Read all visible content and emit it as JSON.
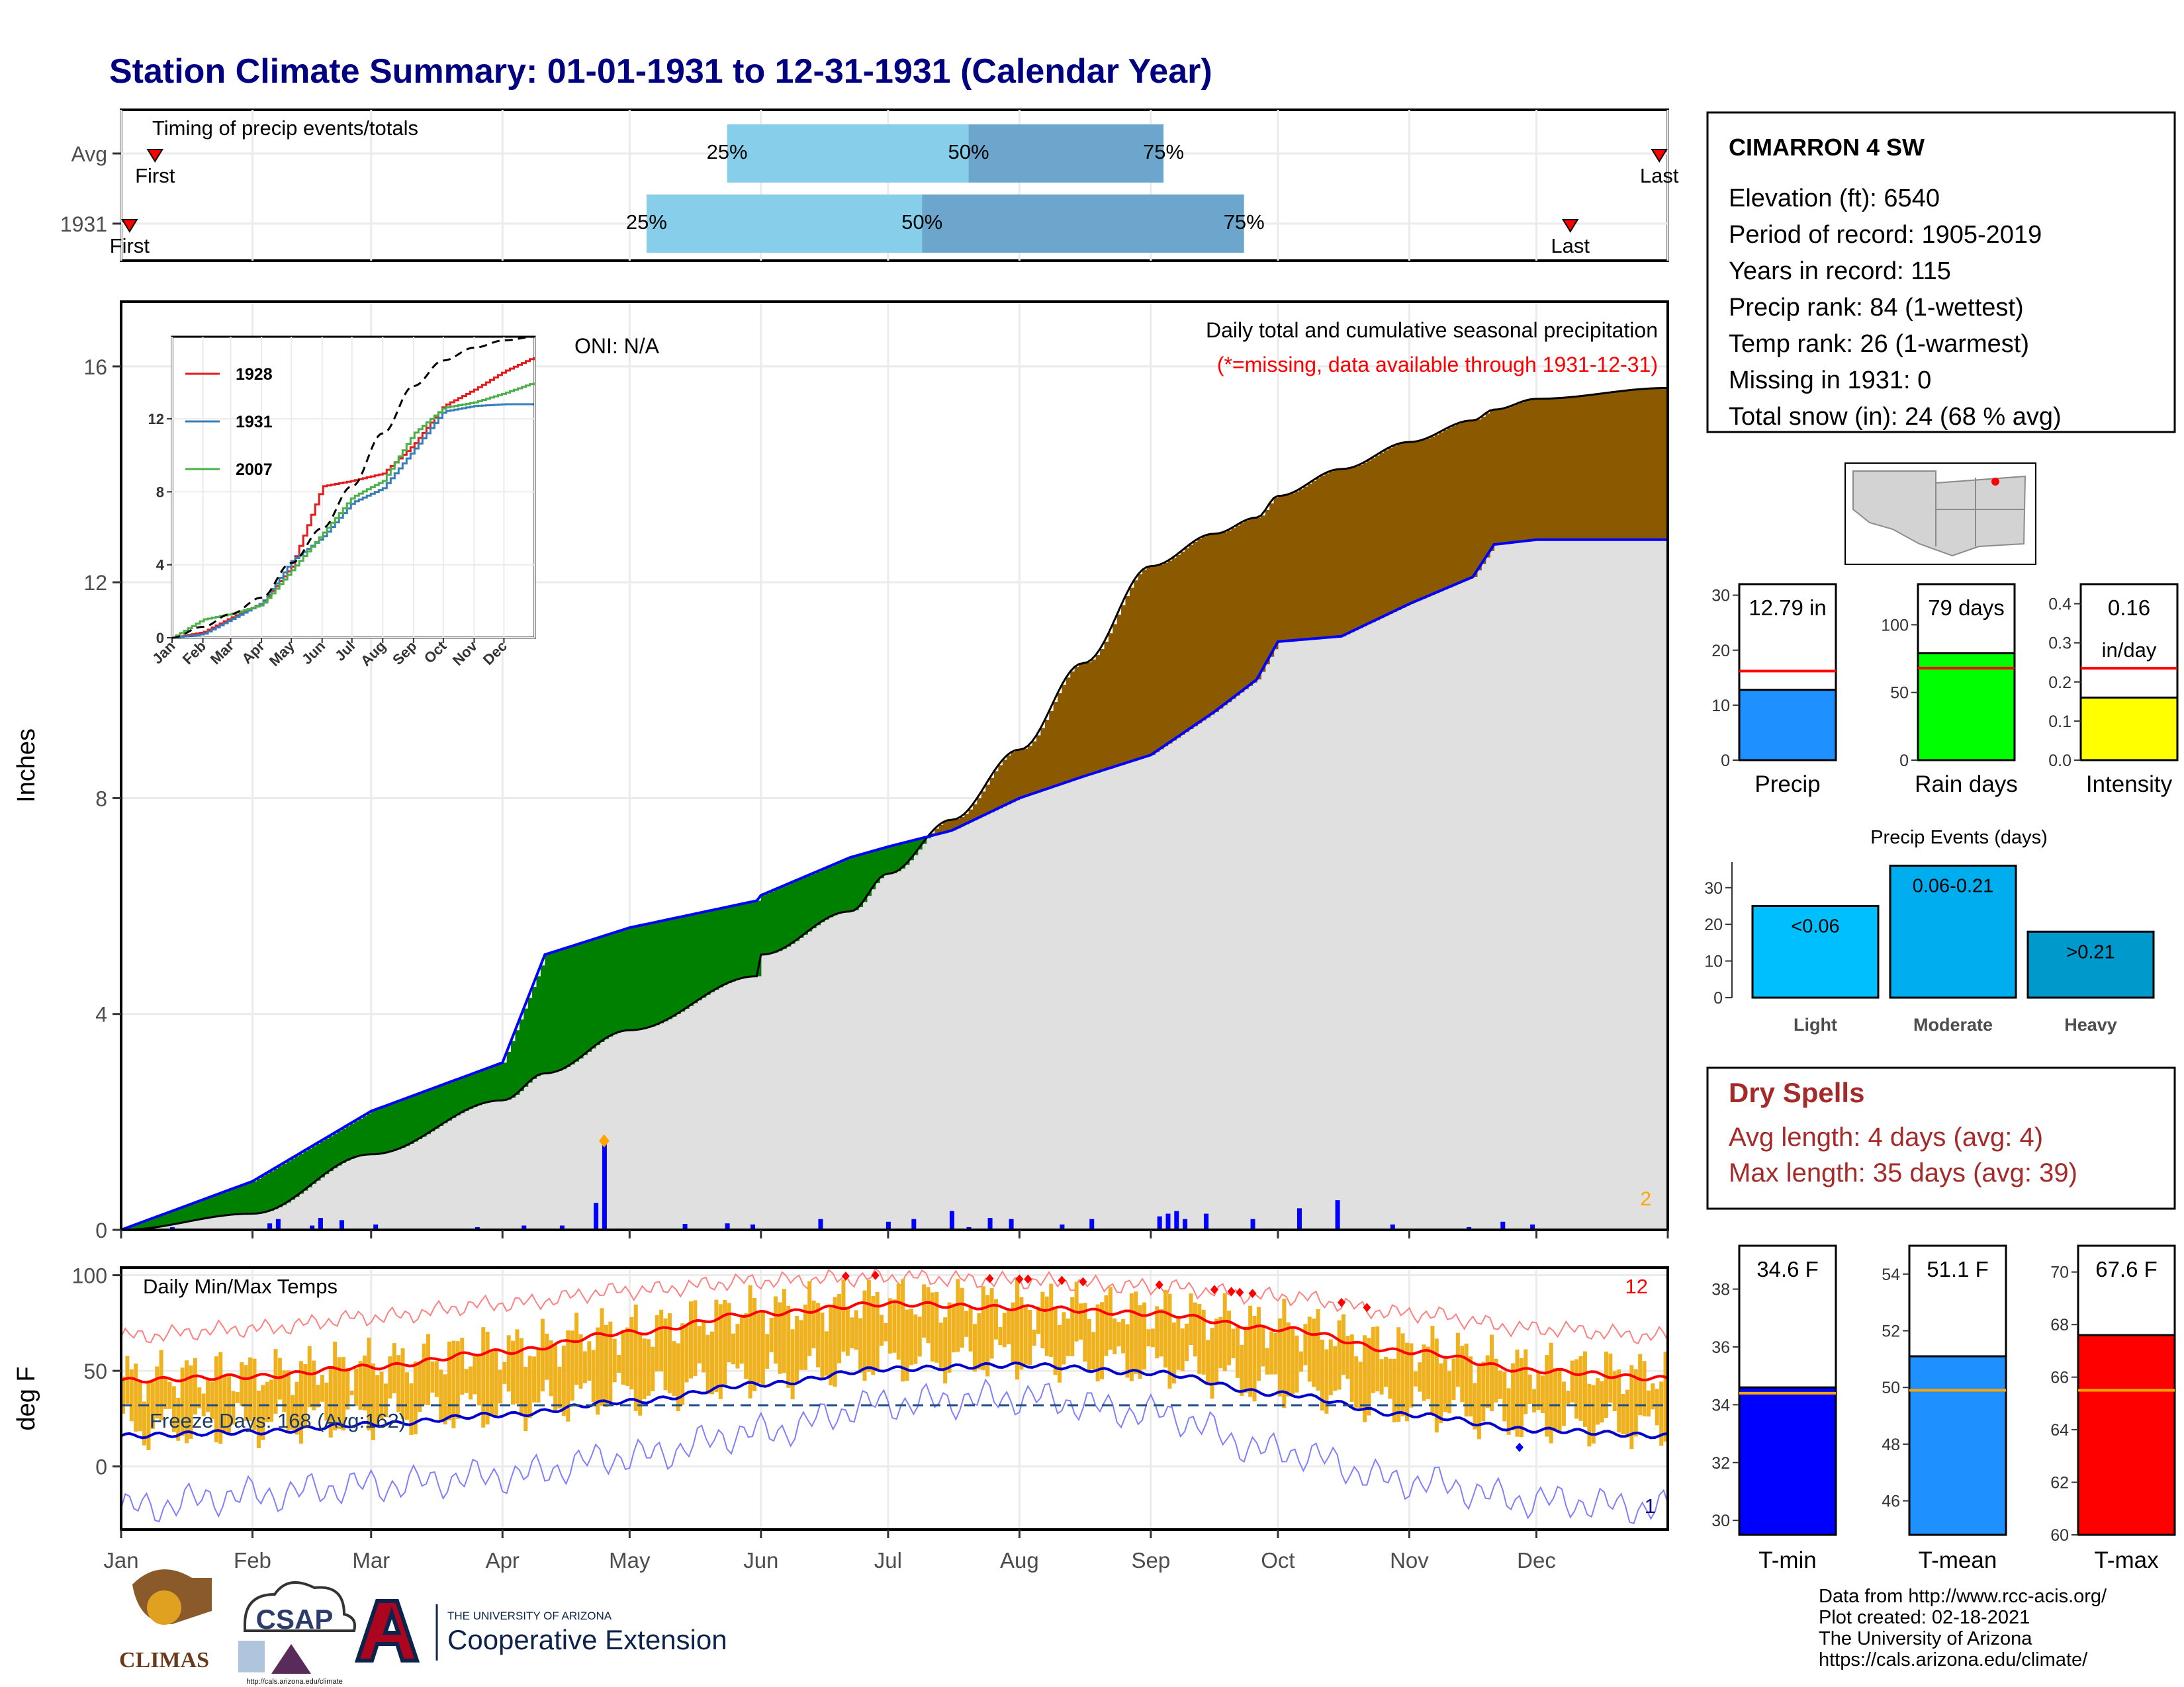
{
  "title": "Station Climate Summary: 01-01-1931 to 12-31-1931 (Calendar Year)",
  "colors": {
    "title": "#000080",
    "above_normal": "#008000",
    "below_normal": "#8B5A00",
    "normal_fill": "#E0E0E0",
    "precip_line": "#0000FF",
    "temp_bar": "#EFB21E",
    "avg_max": "#FF0000",
    "avg_min": "#0000CC",
    "missing": "#FF0000",
    "timing_light": "#87CEEB",
    "timing_dark": "#6CA6CD"
  },
  "month_labels": [
    "Jan",
    "Feb",
    "Mar",
    "Apr",
    "May",
    "Jun",
    "Jul",
    "Aug",
    "Sep",
    "Oct",
    "Nov",
    "Dec"
  ],
  "timing": {
    "title": "Timing of precip events/totals",
    "rows": [
      {
        "label": "Avg",
        "first_label": "First",
        "last_label": "Last",
        "first_day": 8,
        "last_day": 363,
        "p25": 143,
        "p50": 200,
        "p75": 246,
        "q25_label": "25%",
        "q50_label": "50%",
        "q75_label": "75%"
      },
      {
        "label": "1931",
        "first_label": "First",
        "last_label": "Last",
        "first_day": 2,
        "last_day": 342,
        "p25": 124,
        "p50": 189,
        "p75": 265,
        "q25_label": "25%",
        "q50_label": "50%",
        "q75_label": "75%"
      }
    ]
  },
  "precip": {
    "ylabel": "Inches",
    "oni": "ONI: N/A",
    "title": "Daily total and cumulative seasonal precipitation",
    "missing_note": "(*=missing, data available through 1931-12-31)",
    "corner_count": "2",
    "yticks": [
      0,
      4,
      8,
      12,
      16
    ],
    "ylim": [
      0,
      17.2
    ]
  },
  "inset": {
    "yticks": [
      0,
      4,
      8,
      12
    ],
    "ylim": [
      0,
      16.5
    ],
    "legend": [
      {
        "name": "1928",
        "color": "#E41A1C"
      },
      {
        "name": "1931",
        "color": "#377EB8"
      },
      {
        "name": "2007",
        "color": "#4DAF4A"
      }
    ]
  },
  "temps": {
    "label": "Daily Min/Max Temps",
    "ylabel": "deg F",
    "freeze_label": "Freeze Days: 168 (Avg:162)",
    "freeze_value": 32,
    "count_hot": "12",
    "count_cold": "1",
    "yticks": [
      0,
      50,
      100
    ],
    "ylim": [
      -33,
      104
    ]
  },
  "station": {
    "name": "CIMARRON 4 SW",
    "lines": [
      "Elevation (ft): 6540",
      "Period of record: 1905-2019",
      "Years in record: 115",
      "Precip rank: 84 (1-wettest)",
      "Temp rank: 26 (1-warmest)",
      "Missing in 1931: 0",
      "Total snow (in): 24 (68 % avg)"
    ]
  },
  "mini_bars": [
    {
      "label": "Precip",
      "value": 12.79,
      "value_label": "12.79 in",
      "avg": 16.2,
      "max": 32,
      "ticks": [
        0,
        10,
        20,
        30
      ],
      "color": "#1E90FF"
    },
    {
      "label": "Rain days",
      "value": 79,
      "value_label": "79 days",
      "avg": 68,
      "max": 130,
      "ticks": [
        0,
        50,
        100
      ],
      "color": "#00FF00"
    },
    {
      "label": "Intensity",
      "value": 0.16,
      "value_label": "0.16",
      "value_label2": "in/day",
      "avg": 0.235,
      "max": 0.45,
      "ticks": [
        0.0,
        0.1,
        0.2,
        0.3,
        0.4
      ],
      "color": "#FFFF00"
    }
  ],
  "events": {
    "title": "Precip Events (days)",
    "ticks": [
      0,
      10,
      20,
      30
    ],
    "max": 37,
    "bars": [
      {
        "cat": "Light",
        "label": "<0.06",
        "value": 25,
        "color": "#00BFFF"
      },
      {
        "cat": "Moderate",
        "label": "0.06-0.21",
        "value": 36,
        "color": "#00AEEF"
      },
      {
        "cat": "Heavy",
        "label": ">0.21",
        "value": 18,
        "color": "#0099CC"
      }
    ]
  },
  "dry_spells": {
    "title": "Dry Spells",
    "avg": "Avg length: 4 days (avg: 4)",
    "max": "Max length: 35 days (avg: 39)"
  },
  "temp_bars": [
    {
      "label": "T-min",
      "value": 34.6,
      "value_label": "34.6 F",
      "avg": 34.4,
      "min": 29.5,
      "max": 39.5,
      "ticks": [
        30,
        32,
        34,
        36,
        38
      ],
      "color": "#0000FF"
    },
    {
      "label": "T-mean",
      "value": 51.1,
      "value_label": "51.1 F",
      "avg": 49.9,
      "min": 44.8,
      "max": 55.0,
      "ticks": [
        46,
        48,
        50,
        52,
        54
      ],
      "color": "#1E90FF"
    },
    {
      "label": "T-max",
      "value": 67.6,
      "value_label": "67.6 F",
      "avg": 65.5,
      "min": 60,
      "max": 71,
      "ticks": [
        60,
        62,
        64,
        66,
        68,
        70
      ],
      "color": "#FF0000"
    }
  ],
  "footer": {
    "lines": [
      "Data from http://www.rcc-acis.org/",
      "Plot created: 02-18-2021",
      "The University of Arizona",
      "https://cals.arizona.edu/climate/"
    ],
    "climas": "CLIMAS",
    "csap": "CSAP",
    "csap_url": "http://cals.arizona.edu/climate",
    "ua_line1": "THE UNIVERSITY OF ARIZONA",
    "ua_line2": "Cooperative Extension"
  },
  "chart_data": [
    {
      "type": "area",
      "name_note": "cumulative precipitation (inches) by day of year",
      "x": [
        0,
        31,
        59,
        90,
        100,
        120,
        150,
        151,
        172,
        181,
        196,
        212,
        227,
        243,
        258,
        268,
        273,
        288,
        304,
        319,
        324,
        334,
        365
      ],
      "series": [
        {
          "name": "1931",
          "values": [
            0,
            0.9,
            2.2,
            3.1,
            5.1,
            5.6,
            6.1,
            6.2,
            6.9,
            7.1,
            7.4,
            8.0,
            8.4,
            8.8,
            9.6,
            10.2,
            10.9,
            11.0,
            11.6,
            12.1,
            12.7,
            12.79,
            12.79
          ]
        },
        {
          "name": "",
          "values": [
            0,
            0.3,
            1.4,
            2.4,
            2.9,
            3.7,
            4.7,
            5.1,
            5.9,
            6.6,
            7.6,
            8.9,
            10.5,
            12.3,
            12.9,
            13.2,
            13.6,
            14.1,
            14.6,
            15.0,
            15.2,
            15.4,
            15.6
          ]
        }
      ],
      "xlabel": "",
      "ylabel": "Inches",
      "ylim": [
        0,
        17.2
      ]
    },
    {
      "type": "bar",
      "name_note": "largest daily precipitation totals (inches) by day of year",
      "x": [
        12,
        35,
        37,
        45,
        47,
        52,
        60,
        84,
        95,
        104,
        112,
        114,
        133,
        143,
        149,
        165,
        181,
        187,
        196,
        200,
        205,
        210,
        222,
        229,
        245,
        247,
        249,
        251,
        256,
        267,
        278,
        287,
        300,
        318,
        326,
        333
      ],
      "values": [
        0.05,
        0.12,
        0.2,
        0.08,
        0.22,
        0.18,
        0.1,
        0.05,
        0.08,
        0.08,
        0.5,
        1.6,
        0.11,
        0.12,
        0.1,
        0.2,
        0.15,
        0.2,
        0.35,
        0.05,
        0.22,
        0.2,
        0.1,
        0.2,
        0.25,
        0.3,
        0.35,
        0.2,
        0.3,
        0.2,
        0.4,
        0.55,
        0.1,
        0.05,
        0.15,
        0.1
      ]
    },
    {
      "type": "line",
      "name_note": "inset cumulative precipitation of comparison years (inches)",
      "x": [
        0,
        31,
        59,
        90,
        120,
        151,
        181,
        212,
        243,
        273,
        304,
        334,
        365
      ],
      "series": [
        {
          "name": "1928",
          "values": [
            0,
            0.3,
            1.1,
            1.9,
            3.9,
            8.3,
            8.6,
            9.0,
            10.6,
            12.7,
            13.6,
            14.6,
            15.4
          ]
        },
        {
          "name": "1931",
          "values": [
            0,
            0.2,
            1.0,
            1.9,
            4.2,
            5.5,
            7.4,
            8.2,
            10.3,
            12.4,
            12.7,
            12.8,
            12.8
          ]
        },
        {
          "name": "2007",
          "values": [
            0,
            1.0,
            1.3,
            1.8,
            3.7,
            5.7,
            7.7,
            8.6,
            11.2,
            12.6,
            12.9,
            13.4,
            14.0
          ]
        },
        {
          "name": "",
          "values": [
            0,
            0.6,
            1.3,
            2.2,
            4.1,
            6.0,
            8.3,
            11.2,
            13.8,
            15.2,
            15.9,
            16.3,
            16.5
          ]
        }
      ],
      "ylim": [
        0,
        16.5
      ]
    },
    {
      "type": "line",
      "name_note": "daily temperatures (deg F) by day of year",
      "x": [
        0,
        31,
        59,
        90,
        120,
        151,
        181,
        212,
        243,
        273,
        304,
        334,
        365
      ],
      "series": [
        {
          "name": "",
          "values": [
            45,
            47,
            52,
            60,
            70,
            80,
            85,
            83,
            80,
            72,
            60,
            50,
            46
          ]
        },
        {
          "name": "",
          "values": [
            16,
            18,
            22,
            27,
            34,
            43,
            51,
            53,
            49,
            38,
            27,
            19,
            16
          ]
        },
        {
          "name": "",
          "values": [
            68,
            72,
            78,
            85,
            92,
            97,
            99,
            97,
            94,
            89,
            80,
            72,
            68
          ]
        },
        {
          "name": "",
          "values": [
            -22,
            -15,
            -10,
            -5,
            5,
            18,
            33,
            36,
            28,
            8,
            -8,
            -18,
            -22
          ]
        }
      ],
      "ylim": [
        -33,
        104
      ]
    }
  ]
}
